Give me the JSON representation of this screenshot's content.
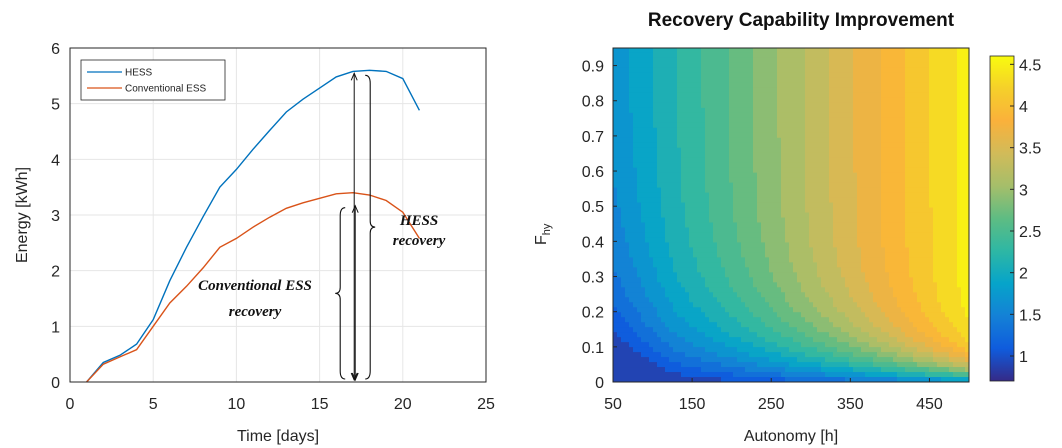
{
  "chart_data": [
    {
      "type": "line",
      "title": "",
      "xlabel": "Time [days]",
      "ylabel": "Energy [kWh]",
      "xlim": [
        0,
        25
      ],
      "ylim": [
        0,
        6
      ],
      "xticks": [
        "0",
        "5",
        "10",
        "15",
        "20",
        "25"
      ],
      "yticks": [
        "0",
        "1",
        "2",
        "3",
        "4",
        "5",
        "6"
      ],
      "grid": true,
      "legend_position": "top-left",
      "series": [
        {
          "name": "HESS",
          "color": "#0072BD",
          "x": [
            1,
            2,
            3,
            4,
            5,
            6,
            7,
            8,
            9,
            10,
            11,
            12,
            13,
            14,
            15,
            16,
            17,
            18,
            19,
            20,
            21
          ],
          "y": [
            0,
            0.35,
            0.48,
            0.68,
            1.12,
            1.82,
            2.42,
            2.97,
            3.5,
            3.82,
            4.18,
            4.52,
            4.85,
            5.08,
            5.28,
            5.48,
            5.58,
            5.6,
            5.58,
            5.45,
            4.88
          ]
        },
        {
          "name": "Conventional ESS",
          "color": "#D95319",
          "x": [
            1,
            2,
            3,
            4,
            5,
            6,
            7,
            8,
            9,
            10,
            11,
            12,
            13,
            14,
            15,
            16,
            17,
            18,
            19,
            20,
            21
          ],
          "y": [
            0,
            0.32,
            0.45,
            0.58,
            1.0,
            1.42,
            1.72,
            2.05,
            2.42,
            2.58,
            2.78,
            2.96,
            3.12,
            3.22,
            3.3,
            3.38,
            3.4,
            3.36,
            3.26,
            3.05,
            2.58
          ]
        }
      ],
      "annotations": [
        {
          "text_lines": [
            "HESS",
            "recovery"
          ]
        },
        {
          "text_lines": [
            "Conventional ESS",
            "recovery"
          ]
        }
      ]
    },
    {
      "type": "heatmap",
      "subtype": "filled-contour",
      "title": "Recovery Capability Improvement",
      "xlabel": "Autonomy [h]",
      "ylabel_main": "F",
      "ylabel_sub": "hy",
      "xlim": [
        50,
        500
      ],
      "ylim": [
        0,
        0.95
      ],
      "xticks": [
        "50",
        "150",
        "250",
        "350",
        "450"
      ],
      "yticks": [
        "0",
        "0.1",
        "0.2",
        "0.3",
        "0.4",
        "0.5",
        "0.6",
        "0.7",
        "0.8",
        "0.9"
      ],
      "colorbar": {
        "range": [
          0.7,
          4.6
        ],
        "ticks": [
          "1",
          "1.5",
          "2",
          "2.5",
          "3",
          "3.5",
          "4",
          "4.5"
        ],
        "colormap": "parula"
      }
    }
  ]
}
